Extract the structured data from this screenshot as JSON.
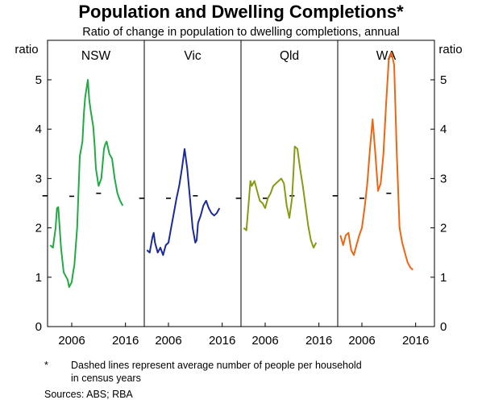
{
  "chart_data": {
    "type": "line",
    "title": "Population and Dwelling Completions*",
    "subtitle": "Ratio of change in population to dwelling completions, annual",
    "ylabel_left": "ratio",
    "ylabel_right": "ratio",
    "ylim": [
      0,
      5.8
    ],
    "yticks": [
      0,
      1,
      2,
      3,
      4,
      5
    ],
    "xlim": [
      2001.5,
      2019.5
    ],
    "xticks": [
      2006,
      2016
    ],
    "grid": false,
    "panels": [
      {
        "name": "NSW",
        "color": "#22aa44",
        "series": {
          "x": [
            2002.0,
            2002.5,
            2003.0,
            2003.25,
            2003.5,
            2004.0,
            2004.5,
            2005.0,
            2005.25,
            2005.5,
            2006.0,
            2006.25,
            2006.5,
            2007.0,
            2007.5,
            2008.0,
            2008.25,
            2008.5,
            2009.0,
            2009.25,
            2009.5,
            2010.0,
            2010.25,
            2010.5,
            2011.0,
            2011.5,
            2012.0,
            2012.25,
            2012.5,
            2013.0,
            2013.5,
            2014.0,
            2014.5,
            2015.0,
            2015.5
          ],
          "y": [
            1.65,
            1.6,
            2.0,
            2.4,
            2.42,
            1.6,
            1.1,
            1.0,
            0.95,
            0.8,
            0.9,
            1.1,
            1.25,
            2.0,
            3.45,
            3.75,
            4.3,
            4.65,
            5.0,
            4.6,
            4.4,
            4.05,
            3.7,
            3.2,
            2.85,
            3.0,
            3.6,
            3.7,
            3.75,
            3.5,
            3.4,
            3.0,
            2.7,
            2.55,
            2.45
          ]
        },
        "household_size": [
          {
            "year": 2001,
            "value": 2.65
          },
          {
            "year": 2006,
            "value": 2.64
          },
          {
            "year": 2011,
            "value": 2.7
          }
        ]
      },
      {
        "name": "Vic",
        "color": "#1a2a9a",
        "series": {
          "x": [
            2002.0,
            2002.5,
            2003.0,
            2003.25,
            2003.5,
            2004.0,
            2004.5,
            2005.0,
            2005.5,
            2006.0,
            2006.5,
            2007.0,
            2007.5,
            2008.0,
            2008.5,
            2009.0,
            2009.5,
            2010.0,
            2010.5,
            2011.0,
            2011.25,
            2011.5,
            2012.0,
            2012.5,
            2013.0,
            2013.5,
            2014.0,
            2014.5,
            2015.0,
            2015.5
          ],
          "y": [
            1.55,
            1.5,
            1.8,
            1.9,
            1.7,
            1.5,
            1.6,
            1.45,
            1.65,
            1.7,
            2.0,
            2.3,
            2.6,
            2.85,
            3.2,
            3.6,
            3.2,
            2.6,
            2.0,
            1.7,
            1.75,
            2.1,
            2.25,
            2.45,
            2.55,
            2.4,
            2.3,
            2.25,
            2.3,
            2.4
          ]
        },
        "household_size": [
          {
            "year": 2001,
            "value": 2.6
          },
          {
            "year": 2006,
            "value": 2.6
          },
          {
            "year": 2011,
            "value": 2.65
          }
        ]
      },
      {
        "name": "Qld",
        "color": "#8a9a12",
        "series": {
          "x": [
            2002.0,
            2002.5,
            2003.0,
            2003.25,
            2003.5,
            2004.0,
            2004.5,
            2005.0,
            2005.5,
            2006.0,
            2006.5,
            2007.0,
            2007.5,
            2008.0,
            2008.5,
            2009.0,
            2009.5,
            2010.0,
            2010.5,
            2011.0,
            2011.25,
            2011.5,
            2012.0,
            2012.5,
            2013.0,
            2013.5,
            2014.0,
            2014.5,
            2015.0,
            2015.5
          ],
          "y": [
            2.0,
            1.95,
            2.6,
            2.95,
            2.85,
            2.95,
            2.75,
            2.55,
            2.5,
            2.4,
            2.6,
            2.7,
            2.85,
            2.9,
            2.95,
            3.0,
            2.9,
            2.45,
            2.2,
            2.6,
            3.1,
            3.65,
            3.6,
            3.2,
            2.85,
            2.45,
            2.05,
            1.75,
            1.6,
            1.7
          ]
        },
        "household_size": [
          {
            "year": 2001,
            "value": 2.6
          },
          {
            "year": 2006,
            "value": 2.6
          },
          {
            "year": 2011,
            "value": 2.65
          }
        ]
      },
      {
        "name": "WA",
        "color": "#ee6611",
        "series": {
          "x": [
            2002.0,
            2002.5,
            2003.0,
            2003.5,
            2004.0,
            2004.5,
            2005.0,
            2005.5,
            2006.0,
            2006.5,
            2007.0,
            2007.5,
            2008.0,
            2008.5,
            2009.0,
            2009.5,
            2010.0,
            2010.5,
            2011.0,
            2011.5,
            2012.0,
            2012.5,
            2013.0,
            2013.5,
            2014.0,
            2014.5,
            2015.0,
            2015.5
          ],
          "y": [
            1.85,
            1.65,
            1.85,
            1.9,
            1.55,
            1.45,
            1.65,
            1.85,
            2.0,
            2.4,
            2.9,
            3.6,
            4.2,
            3.5,
            2.75,
            2.9,
            3.5,
            4.5,
            5.4,
            5.55,
            5.3,
            3.5,
            2.0,
            1.7,
            1.5,
            1.3,
            1.2,
            1.15
          ]
        },
        "household_size": [
          {
            "year": 2001,
            "value": 2.65
          },
          {
            "year": 2006,
            "value": 2.6
          },
          {
            "year": 2011,
            "value": 2.7
          }
        ]
      }
    ]
  },
  "footnote_marker": "*",
  "footnote_text_line1": "Dashed lines represent average number of people per household",
  "footnote_text_line2": "in census years",
  "sources": "Sources:   ABS; RBA"
}
